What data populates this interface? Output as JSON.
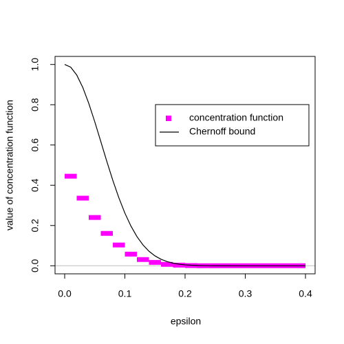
{
  "chart_data": {
    "type": "line",
    "x_label": "epsilon",
    "y_label": "value of concentration function",
    "xlim": [
      -0.016,
      0.416
    ],
    "ylim": [
      -0.04,
      1.04
    ],
    "xticks": [
      {
        "value": 0,
        "label": "0.0"
      },
      0.1,
      0.2,
      0.3,
      0.4
    ],
    "yticks": [
      {
        "value": 0,
        "label": "0.0"
      },
      0.2,
      0.4,
      0.6,
      0.8,
      {
        "value": 1,
        "label": "1.0"
      }
    ],
    "reference_line": {
      "value": 0,
      "color": "#bebebe"
    },
    "legend_position": "right",
    "series": [
      {
        "name": "concentration function",
        "color": "#ff00ff",
        "style": "step",
        "x": [
          0,
          0.02,
          0.04,
          0.06,
          0.08,
          0.1,
          0.12,
          0.14,
          0.16,
          0.18,
          0.2,
          0.22,
          0.24,
          0.26,
          0.28,
          0.3,
          0.32,
          0.34,
          0.36,
          0.38
        ],
        "values": [
          0.445,
          0.336,
          0.24,
          0.161,
          0.103,
          0.058,
          0.031,
          0.017,
          0.007,
          0.003,
          0.001,
          0,
          0,
          0,
          0,
          0,
          0,
          0,
          0,
          0
        ]
      },
      {
        "name": "Chernoff bound",
        "color": "#000000",
        "style": "line",
        "x": [
          0,
          0.01,
          0.02,
          0.03,
          0.04,
          0.05,
          0.06,
          0.07,
          0.08,
          0.09,
          0.1,
          0.11,
          0.12,
          0.13,
          0.14,
          0.15,
          0.16,
          0.17,
          0.18,
          0.19,
          0.2,
          0.21,
          0.22,
          0.23,
          0.24,
          0.25,
          0.26,
          0.3,
          0.4
        ],
        "values": [
          1,
          0.9867,
          0.9478,
          0.8864,
          0.807,
          0.7153,
          0.6173,
          0.5186,
          0.4242,
          0.3378,
          0.2618,
          0.1976,
          0.1452,
          0.1039,
          0.0723,
          0.049,
          0.0324,
          0.0208,
          0.013,
          0.0079,
          0.0047,
          0.0027,
          0.0015,
          0.0008,
          0.0004,
          0.0002,
          0.0001,
          0,
          0
        ]
      }
    ]
  }
}
